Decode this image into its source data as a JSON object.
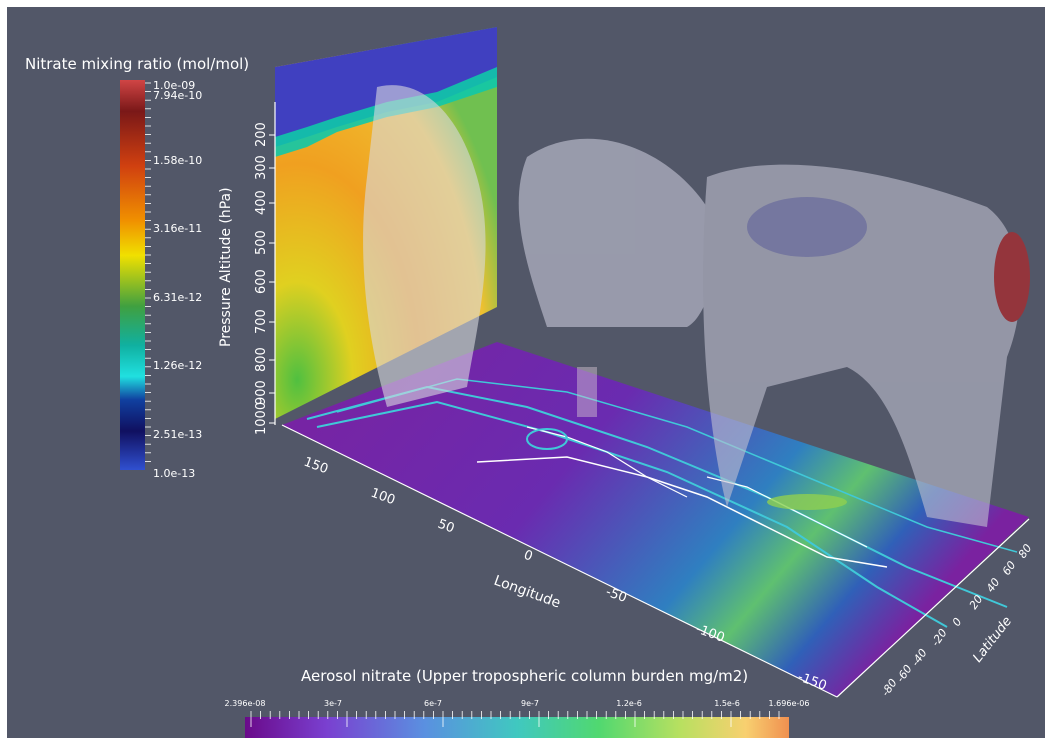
{
  "scalar_bar_vertical": {
    "title": "Nitrate mixing ratio (mol/mol)",
    "labels": [
      "1.0e-09",
      "7.94e-10",
      "1.58e-10",
      "3.16e-11",
      "6.31e-12",
      "1.26e-12",
      "2.51e-13",
      "1.0e-13"
    ],
    "scale": "log",
    "range": [
      1e-13,
      1e-09
    ],
    "colors": [
      "#d04040",
      "#801818",
      "#d84010",
      "#f0a000",
      "#f0e000",
      "#30a030",
      "#10c0b0",
      "#1040a0",
      "#101060",
      "#2040c0"
    ]
  },
  "scalar_bar_horizontal": {
    "title": "Aerosol nitrate (Upper tropospheric column burden mg/m2)",
    "labels": [
      "2.396e-08",
      "3e-7",
      "6e-7",
      "9e-7",
      "1.2e-6",
      "1.5e-6",
      "1.696e-06"
    ],
    "range": [
      2.396e-08,
      1.696e-06
    ],
    "colors": [
      "#6a0a8a",
      "#7a3ad0",
      "#5a90e0",
      "#40c8c0",
      "#50d870",
      "#b8e060",
      "#f8d070",
      "#f09050"
    ]
  },
  "axes": {
    "altitude": {
      "title": "Pressure Altitude (hPa)",
      "ticks": [
        "200",
        "300",
        "400",
        "500",
        "600",
        "700",
        "800",
        "900",
        "1000"
      ]
    },
    "longitude": {
      "title": "Longitude",
      "ticks": [
        "150",
        "100",
        "50",
        "0",
        "-50",
        "-100",
        "-150"
      ]
    },
    "latitude": {
      "title": "Latitude",
      "ticks": [
        "-80",
        "-60",
        "-40",
        "-20",
        "0",
        "20",
        "40",
        "60",
        "80"
      ]
    }
  },
  "colors": {
    "background": "#525768",
    "frame": "#ffffff",
    "text": "#ffffff",
    "contour": "#40c8d8",
    "coastline": "#ffffff"
  }
}
